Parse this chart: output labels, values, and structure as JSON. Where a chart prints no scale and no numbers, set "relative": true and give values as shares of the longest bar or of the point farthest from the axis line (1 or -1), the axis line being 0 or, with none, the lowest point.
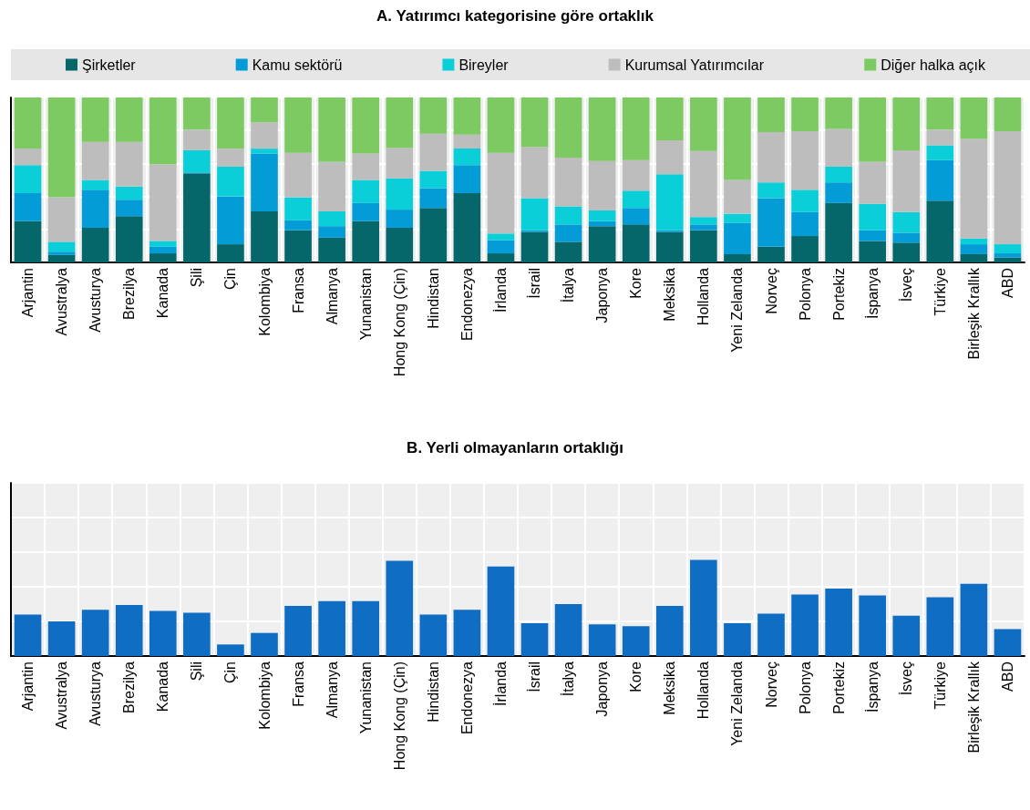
{
  "chart_data": [
    {
      "type": "bar",
      "title": "A. Yatırımcı kategorisine göre ortaklık",
      "stacked": true,
      "relative": true,
      "legend": "top",
      "grid": true,
      "categories": [
        "Arjantin",
        "Avustralya",
        "Avusturya",
        "Brezilya",
        "Kanada",
        "Şili",
        "Çin",
        "Kolombiya",
        "Fransa",
        "Almanya",
        "Yunanistan",
        "Hong Kong (Çin)",
        "Hindistan",
        "Endonezya",
        "İrlanda",
        "İsrail",
        "İtalya",
        "Japonya",
        "Kore",
        "Meksika",
        "Hollanda",
        "Yeni Zelanda",
        "Norveç",
        "Polonya",
        "Portekiz",
        "İspanya",
        "İsveç",
        "Türkiye",
        "Birleşik Krallık",
        "ABD"
      ],
      "series": [
        {
          "name": "Şirketler",
          "color": "#06676b",
          "values": [
            0.25,
            0.045,
            0.21,
            0.28,
            0.055,
            0.54,
            0.11,
            0.31,
            0.195,
            0.15,
            0.25,
            0.21,
            0.33,
            0.42,
            0.055,
            0.185,
            0.125,
            0.22,
            0.23,
            0.185,
            0.195,
            0.05,
            0.095,
            0.16,
            0.36,
            0.13,
            0.12,
            0.375,
            0.05,
            0.03
          ]
        },
        {
          "name": "Kamu sektörü",
          "color": "#039cd7",
          "values": [
            0.17,
            0.02,
            0.23,
            0.1,
            0.04,
            0.005,
            0.29,
            0.35,
            0.06,
            0.07,
            0.11,
            0.11,
            0.12,
            0.17,
            0.08,
            0.01,
            0.105,
            0.03,
            0.1,
            0.01,
            0.035,
            0.19,
            0.295,
            0.145,
            0.125,
            0.065,
            0.06,
            0.245,
            0.06,
            0.025
          ]
        },
        {
          "name": "Bireyler",
          "color": "#0acfd8",
          "values": [
            0.17,
            0.06,
            0.06,
            0.08,
            0.035,
            0.135,
            0.18,
            0.03,
            0.14,
            0.09,
            0.14,
            0.19,
            0.105,
            0.1,
            0.04,
            0.195,
            0.11,
            0.065,
            0.105,
            0.34,
            0.045,
            0.055,
            0.095,
            0.135,
            0.095,
            0.16,
            0.125,
            0.09,
            0.035,
            0.055
          ]
        },
        {
          "name": "Kurumsal Yatırımcılar",
          "color": "#bdbdbd",
          "values": [
            0.1,
            0.27,
            0.23,
            0.27,
            0.465,
            0.125,
            0.11,
            0.16,
            0.27,
            0.3,
            0.16,
            0.185,
            0.225,
            0.085,
            0.49,
            0.31,
            0.295,
            0.3,
            0.185,
            0.205,
            0.4,
            0.205,
            0.305,
            0.355,
            0.23,
            0.255,
            0.375,
            0.095,
            0.605,
            0.685
          ]
        },
        {
          "name": "Diğer halka açık",
          "color": "#7dc962",
          "values": [
            0.31,
            0.605,
            0.27,
            0.27,
            0.405,
            0.195,
            0.31,
            0.15,
            0.335,
            0.39,
            0.34,
            0.305,
            0.22,
            0.225,
            0.335,
            0.3,
            0.365,
            0.385,
            0.38,
            0.26,
            0.325,
            0.5,
            0.21,
            0.205,
            0.19,
            0.39,
            0.32,
            0.195,
            0.25,
            0.205
          ]
        }
      ]
    },
    {
      "type": "bar",
      "title": "B. Yerli olmayanların ortaklığı",
      "relative": true,
      "grid": true,
      "color": "#0f6ec4",
      "categories": [
        "Arjantin",
        "Avustralya",
        "Avusturya",
        "Brezilya",
        "Kanada",
        "Şili",
        "Çin",
        "Kolombiya",
        "Fransa",
        "Almanya",
        "Yunanistan",
        "Hong Kong (Çin)",
        "Hindistan",
        "Endonezya",
        "İrlanda",
        "İsrail",
        "İtalya",
        "Japonya",
        "Kore",
        "Meksika",
        "Hollanda",
        "Yeni Zelanda",
        "Norveç",
        "Polonya",
        "Portekiz",
        "İspanya",
        "İsveç",
        "Türkiye",
        "Birleşik Krallık",
        "ABD"
      ],
      "values": [
        0.43,
        0.36,
        0.48,
        0.53,
        0.47,
        0.45,
        0.12,
        0.24,
        0.52,
        0.57,
        0.57,
        0.99,
        0.43,
        0.48,
        0.93,
        0.34,
        0.54,
        0.33,
        0.31,
        0.52,
        1,
        0.34,
        0.44,
        0.64,
        0.7,
        0.63,
        0.42,
        0.61,
        0.75,
        0.28
      ]
    }
  ]
}
